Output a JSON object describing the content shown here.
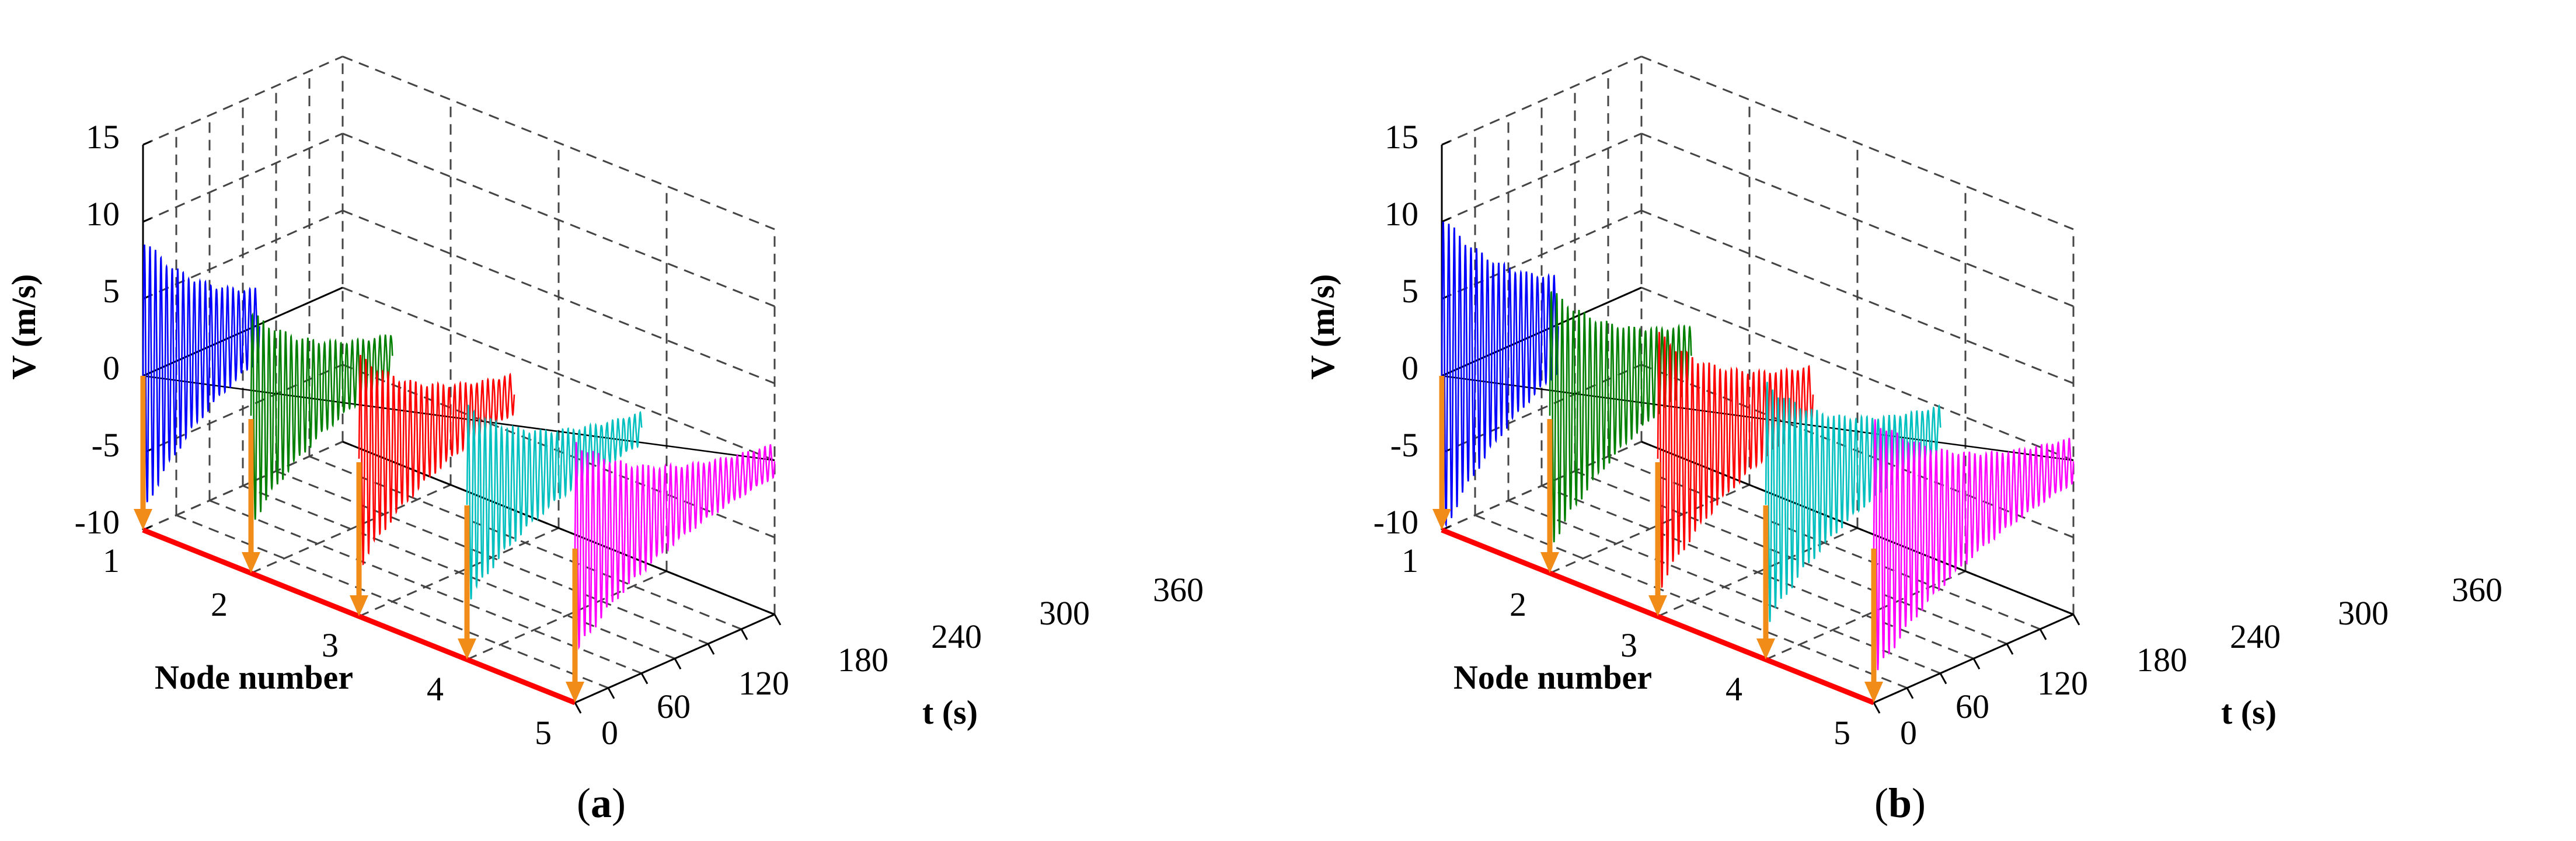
{
  "figure": {
    "caption_a": "a",
    "caption_b": "b"
  },
  "colors": {
    "node1": "#0000ff",
    "node2": "#007f00",
    "node3": "#ff0000",
    "node4": "#00bfbf",
    "node5": "#ff00ff",
    "arrow": "#f28c18",
    "baseline": "#ff0000",
    "grid": "#444444"
  },
  "chart_data": [
    {
      "type": "line",
      "panel": "a",
      "caption": "a",
      "zlabel": "V (m/s)",
      "xlabel": "t (s)",
      "ylabel": "Node number",
      "zlim": [
        -10,
        15
      ],
      "xlim": [
        0,
        360
      ],
      "ylim": [
        1,
        5
      ],
      "zticks": [
        "15",
        "10",
        "5",
        "0",
        "-5",
        "-10"
      ],
      "xticks": [
        "0",
        "60",
        "120",
        "180",
        "240",
        "300",
        "360"
      ],
      "yticks": [
        "1",
        "2",
        "3",
        "4",
        "5"
      ],
      "grid": true,
      "series": [
        {
          "name": "Node 1",
          "node": 1,
          "peak_amplitude": 8.5,
          "decay_time": 140,
          "period": 10,
          "end_time": 210
        },
        {
          "name": "Node 2",
          "node": 2,
          "peak_amplitude": 6.5,
          "decay_time": 140,
          "period": 10,
          "end_time": 255
        },
        {
          "name": "Node 3",
          "node": 3,
          "peak_amplitude": 6.5,
          "decay_time": 140,
          "period": 10,
          "end_time": 280
        },
        {
          "name": "Node 4",
          "node": 4,
          "peak_amplitude": 6.0,
          "decay_time": 140,
          "period": 10,
          "end_time": 315
        },
        {
          "name": "Node 5",
          "node": 5,
          "peak_amplitude": 6.5,
          "decay_time": 160,
          "period": 10,
          "end_time": 360
        }
      ]
    },
    {
      "type": "line",
      "panel": "b",
      "caption": "b",
      "zlabel": "V (m/s)",
      "xlabel": "t (s)",
      "ylabel": "Node number",
      "zlim": [
        -10,
        15
      ],
      "xlim": [
        0,
        360
      ],
      "ylim": [
        1,
        5
      ],
      "zticks": [
        "15",
        "10",
        "5",
        "0",
        "-5",
        "-10"
      ],
      "xticks": [
        "0",
        "60",
        "120",
        "180",
        "240",
        "300",
        "360"
      ],
      "yticks": [
        "1",
        "2",
        "3",
        "4",
        "5"
      ],
      "grid": true,
      "series": [
        {
          "name": "Node 1",
          "node": 1,
          "peak_amplitude": 10.0,
          "decay_time": 160,
          "period": 10,
          "end_time": 210
        },
        {
          "name": "Node 2",
          "node": 2,
          "peak_amplitude": 8.0,
          "decay_time": 160,
          "period": 10,
          "end_time": 255
        },
        {
          "name": "Node 3",
          "node": 3,
          "peak_amplitude": 8.0,
          "decay_time": 160,
          "period": 10,
          "end_time": 280
        },
        {
          "name": "Node 4",
          "node": 4,
          "peak_amplitude": 7.5,
          "decay_time": 160,
          "period": 10,
          "end_time": 315
        },
        {
          "name": "Node 5",
          "node": 5,
          "peak_amplitude": 8.0,
          "decay_time": 180,
          "period": 10,
          "end_time": 360
        }
      ]
    }
  ]
}
